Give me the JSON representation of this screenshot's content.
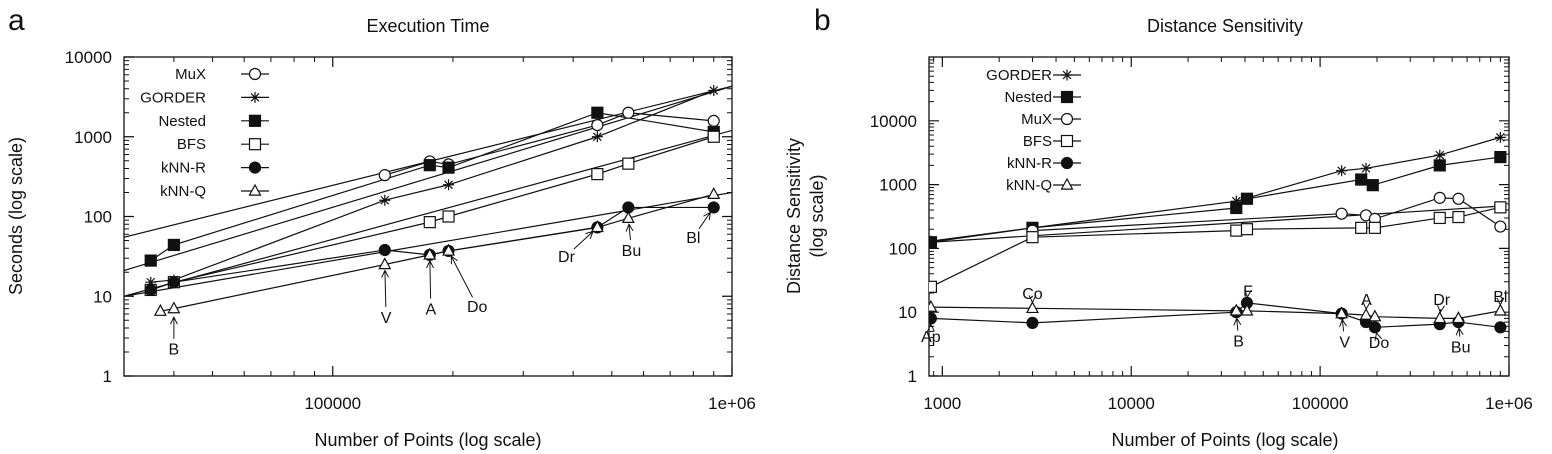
{
  "chart_data": [
    {
      "type": "line",
      "panel_label": "a",
      "title": "Execution Time",
      "xlabel": "Number of Points (log scale)",
      "ylabel": "Seconds (log scale)",
      "xscale": "log",
      "yscale": "log",
      "xlim": [
        30000,
        1000000
      ],
      "ylim": [
        1,
        10000
      ],
      "xticks": [
        {
          "value": 100000,
          "label": "100000"
        },
        {
          "value": 1000000,
          "label": "1e+06"
        }
      ],
      "yticks": [
        {
          "value": 1,
          "label": "1"
        },
        {
          "value": 10,
          "label": "10"
        },
        {
          "value": 100,
          "label": "100"
        },
        {
          "value": 1000,
          "label": "1000"
        },
        {
          "value": 10000,
          "label": "10000"
        }
      ],
      "legend_position": "top-left",
      "series": [
        {
          "name": "MuX",
          "marker": "circle-open",
          "x": [
            135000,
            175000,
            195000,
            460000,
            550000,
            900000
          ],
          "y": [
            330,
            490,
            450,
            1400,
            2000,
            1580
          ]
        },
        {
          "name": "GORDER",
          "marker": "star",
          "x": [
            35000,
            40000,
            135000,
            195000,
            460000,
            900000
          ],
          "y": [
            15,
            16,
            160,
            250,
            1000,
            3800
          ]
        },
        {
          "name": "Nested",
          "marker": "square-filled",
          "x": [
            35000,
            40000,
            175000,
            195000,
            460000,
            900000
          ],
          "y": [
            28,
            44,
            440,
            410,
            2000,
            1150
          ]
        },
        {
          "name": "BFS",
          "marker": "square-open",
          "x": [
            35000,
            40000,
            175000,
            195000,
            460000,
            550000,
            900000
          ],
          "y": [
            12,
            15,
            85,
            100,
            340,
            460,
            1000
          ]
        },
        {
          "name": "kNN-R",
          "marker": "circle-filled",
          "x": [
            35000,
            40000,
            135000,
            175000,
            195000,
            460000,
            550000,
            900000
          ],
          "y": [
            12,
            15,
            38,
            33,
            37,
            73,
            130,
            130
          ]
        },
        {
          "name": "kNN-Q",
          "marker": "triangle-open",
          "x": [
            37000,
            40000,
            135000,
            175000,
            195000,
            460000,
            550000,
            900000
          ],
          "y": [
            6.5,
            7,
            25,
            33,
            37,
            73,
            95,
            190
          ]
        }
      ],
      "fit_lines": [
        {
          "x": [
            30000,
            1000000
          ],
          "y": [
            55,
            4300
          ]
        },
        {
          "x": [
            30000,
            1000000
          ],
          "y": [
            21,
            4300
          ]
        },
        {
          "x": [
            30000,
            1000000
          ],
          "y": [
            10,
            1200
          ]
        },
        {
          "x": [
            30000,
            1000000
          ],
          "y": [
            10,
            200
          ]
        }
      ],
      "annotations": [
        {
          "text": "B",
          "x": 40000,
          "y": 6.5,
          "label_x": 40000,
          "label_y": 2.2
        },
        {
          "text": "V",
          "x": 135000,
          "y": 25,
          "label_x": 136000,
          "label_y": 5.5
        },
        {
          "text": "A",
          "x": 175000,
          "y": 33,
          "label_x": 176000,
          "label_y": 7
        },
        {
          "text": "Do",
          "x": 195000,
          "y": 37,
          "label_x": 230000,
          "label_y": 7.5
        },
        {
          "text": "Dr",
          "x": 460000,
          "y": 73,
          "label_x": 385000,
          "label_y": 32
        },
        {
          "text": "Bu",
          "x": 550000,
          "y": 95,
          "label_x": 560000,
          "label_y": 38
        },
        {
          "text": "Bl",
          "x": 900000,
          "y": 130,
          "label_x": 800000,
          "label_y": 55
        }
      ]
    },
    {
      "type": "line",
      "panel_label": "b",
      "title": "Distance Sensitivity",
      "xlabel": "Number of Points (log scale)",
      "ylabel": "Distance Sensitivity (log scale)",
      "ylabel_lines": [
        "Distance Sensitivity",
        "(log scale)"
      ],
      "xscale": "log",
      "yscale": "log",
      "xlim": [
        850,
        1000000
      ],
      "ylim": [
        1,
        100000
      ],
      "xticks": [
        {
          "value": 1000,
          "label": "1000"
        },
        {
          "value": 10000,
          "label": "10000"
        },
        {
          "value": 100000,
          "label": "100000"
        },
        {
          "value": 1000000,
          "label": "1e+06"
        }
      ],
      "yticks": [
        {
          "value": 1,
          "label": "1"
        },
        {
          "value": 10,
          "label": "10"
        },
        {
          "value": 100,
          "label": "100"
        },
        {
          "value": 1000,
          "label": "1000"
        },
        {
          "value": 10000,
          "label": "10000"
        }
      ],
      "legend_position": "top-left",
      "series": [
        {
          "name": "GORDER",
          "marker": "star",
          "x": [
            870,
            36000,
            130000,
            175000,
            430000,
            900000
          ],
          "y": [
            130,
            550,
            1650,
            1800,
            2900,
            5500
          ]
        },
        {
          "name": "Nested",
          "marker": "square-filled",
          "x": [
            870,
            3000,
            36000,
            41000,
            165000,
            190000,
            430000,
            900000
          ],
          "y": [
            125,
            210,
            430,
            600,
            1200,
            980,
            2000,
            2700
          ]
        },
        {
          "name": "MuX",
          "marker": "circle-open",
          "x": [
            3000,
            130000,
            175000,
            195000,
            430000,
            540000,
            900000
          ],
          "y": [
            190,
            350,
            330,
            290,
            620,
            600,
            220
          ]
        },
        {
          "name": "BFS",
          "marker": "square-open",
          "x": [
            870,
            3000,
            36000,
            41000,
            165000,
            195000,
            430000,
            540000,
            900000
          ],
          "y": [
            25,
            150,
            190,
            200,
            210,
            210,
            300,
            310,
            440
          ]
        },
        {
          "name": "kNN-R",
          "marker": "circle-filled",
          "x": [
            870,
            3000,
            36000,
            41000,
            130000,
            175000,
            195000,
            430000,
            540000,
            900000
          ],
          "y": [
            8,
            6.8,
            10,
            14,
            9.5,
            7,
            5.8,
            6.5,
            7,
            5.8
          ]
        },
        {
          "name": "kNN-Q",
          "marker": "triangle-open",
          "x": [
            870,
            3000,
            36000,
            41000,
            130000,
            175000,
            195000,
            430000,
            540000,
            900000
          ],
          "y": [
            12,
            11.5,
            10.5,
            10.5,
            9.5,
            9,
            8.5,
            8,
            8,
            10.5
          ]
        }
      ],
      "fit_lines": [
        {
          "x": [
            870,
            900000
          ],
          "y": [
            125,
            460
          ]
        }
      ],
      "annotations": [
        {
          "text": "Ap",
          "x": 870,
          "y": 8,
          "label_x": 870,
          "label_y": 4.2
        },
        {
          "text": "Co",
          "x": 3000,
          "y": 11.5,
          "label_x": 3000,
          "label_y": 20
        },
        {
          "text": "B",
          "x": 36000,
          "y": 10,
          "label_x": 37000,
          "label_y": 3.6
        },
        {
          "text": "F",
          "x": 41000,
          "y": 14,
          "label_x": 41500,
          "label_y": 22
        },
        {
          "text": "V",
          "x": 130000,
          "y": 9.5,
          "label_x": 135000,
          "label_y": 3.5
        },
        {
          "text": "A",
          "x": 175000,
          "y": 9,
          "label_x": 176000,
          "label_y": 16
        },
        {
          "text": "Do",
          "x": 195000,
          "y": 5.8,
          "label_x": 205000,
          "label_y": 3.4
        },
        {
          "text": "Dr",
          "x": 430000,
          "y": 8,
          "label_x": 440000,
          "label_y": 16
        },
        {
          "text": "Bu",
          "x": 540000,
          "y": 7,
          "label_x": 555000,
          "label_y": 2.9
        },
        {
          "text": "Bl",
          "x": 900000,
          "y": 10.5,
          "label_x": 900000,
          "label_y": 18
        }
      ]
    }
  ]
}
